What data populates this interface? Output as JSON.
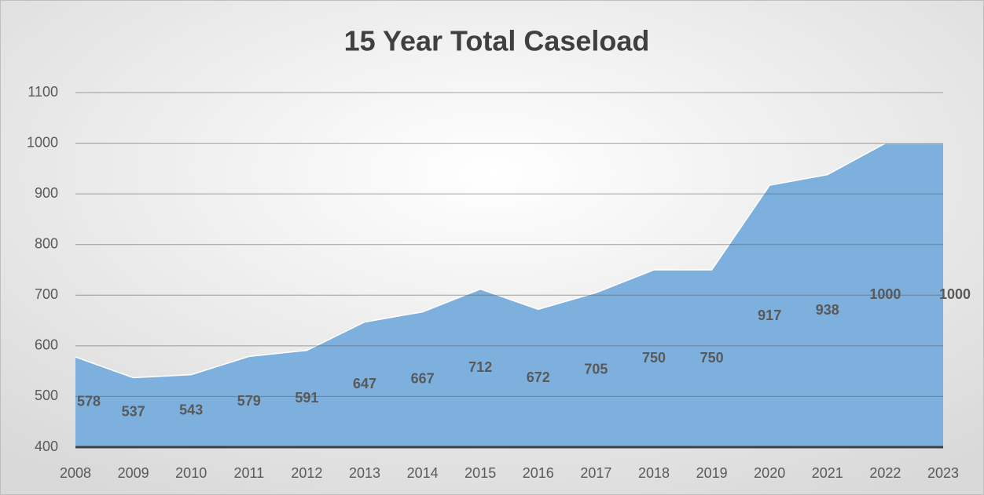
{
  "chart_data": {
    "type": "area",
    "title": "15 Year Total Caseload",
    "categories": [
      "2008",
      "2009",
      "2010",
      "2011",
      "2012",
      "2013",
      "2014",
      "2015",
      "2016",
      "2017",
      "2018",
      "2019",
      "2020",
      "2021",
      "2022",
      "2023"
    ],
    "values": [
      578,
      537,
      543,
      579,
      591,
      647,
      667,
      712,
      672,
      705,
      750,
      750,
      917,
      938,
      1000,
      1000
    ],
    "color": "#7eb0de",
    "ylim": [
      400,
      1100
    ],
    "yticks": [
      400,
      500,
      600,
      700,
      800,
      900,
      1000,
      1100
    ],
    "grid": true
  }
}
